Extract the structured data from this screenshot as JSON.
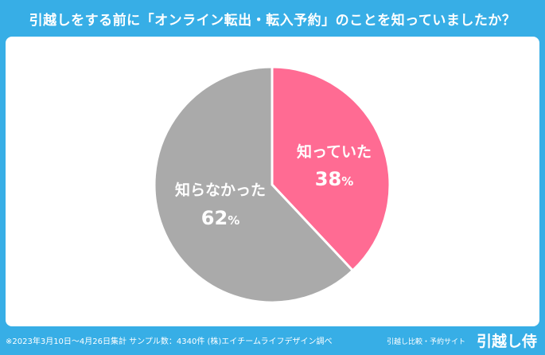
{
  "title": "引越しをする前に「オンライン転出・転入予約」のことを知っていましたか？",
  "footer": {
    "note": "※2023年3月10日〜4月26日集計 サンプル数：4340件 (株)エイチームライフデザイン調べ",
    "site_label": "引越し比較・予約サイト",
    "brand": "引越し侍"
  },
  "colors": {
    "background": "#37aee6",
    "slice_known": "#ff6b93",
    "slice_unknown": "#aaaaaa",
    "label_text": "#ffffff"
  },
  "chart_data": {
    "type": "pie",
    "title": "引越しをする前に「オンライン転出・転入予約」のことを知っていましたか？",
    "slices": [
      {
        "label": "知っていた",
        "value": 38,
        "display": "38%",
        "color": "#ff6b93"
      },
      {
        "label": "知らなかった",
        "value": 62,
        "display": "62%",
        "color": "#aaaaaa"
      }
    ],
    "start": "12 o'clock",
    "direction": "clockwise"
  }
}
